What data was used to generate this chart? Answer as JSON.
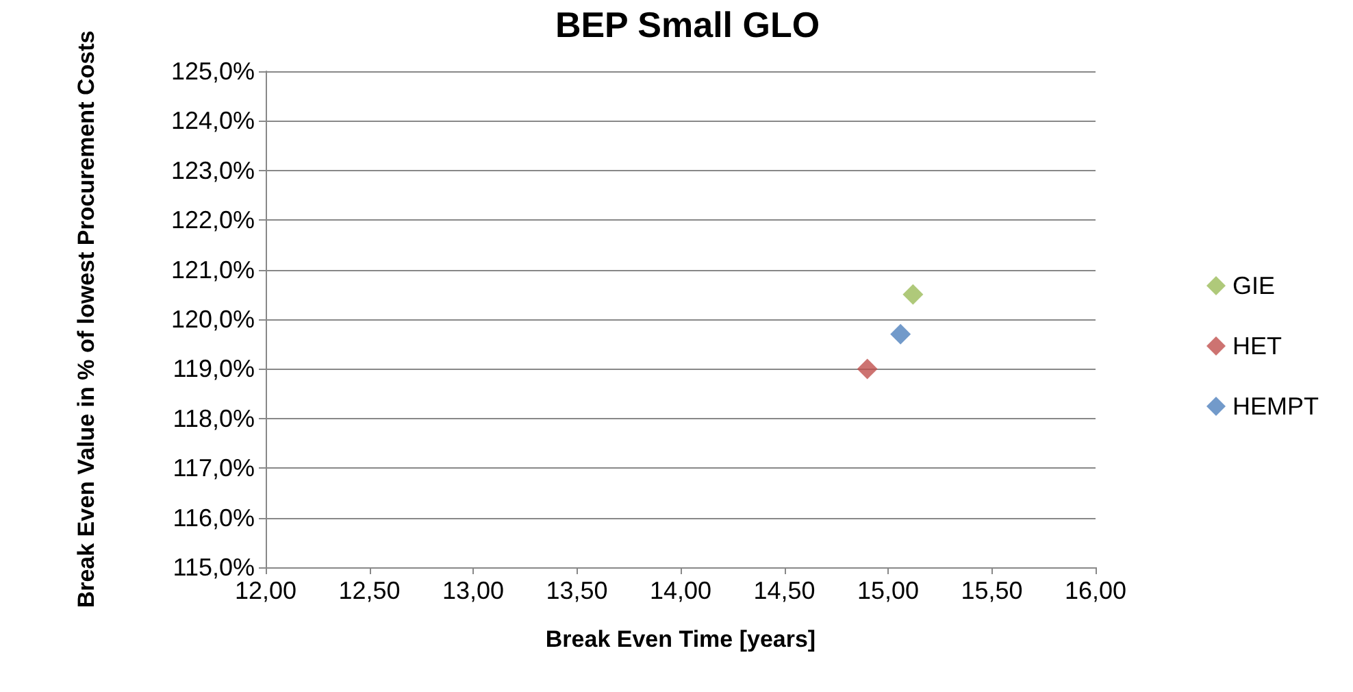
{
  "chart_data": {
    "type": "scatter",
    "title": "BEP Small GLO",
    "xlabel": "Break Even Time [years]",
    "ylabel": "Break Even Value in % of lowest Procurement Costs",
    "series": [
      {
        "name": "GIE",
        "color": "#9bbb59",
        "x": [
          15.12
        ],
        "values": [
          120.5
        ]
      },
      {
        "name": "HET",
        "color": "#c0504d",
        "x": [
          14.9
        ],
        "values": [
          119.0
        ]
      },
      {
        "name": "HEMPT",
        "color": "#4f81bd",
        "x": [
          15.06
        ],
        "values": [
          119.7
        ]
      }
    ],
    "xlim": [
      12,
      16
    ],
    "xticks": [
      {
        "value": 12,
        "label": "12,00"
      },
      {
        "value": 12.5,
        "label": "12,50"
      },
      {
        "value": 13,
        "label": "13,00"
      },
      {
        "value": 13.5,
        "label": "13,50"
      },
      {
        "value": 14,
        "label": "14,00"
      },
      {
        "value": 14.5,
        "label": "14,50"
      },
      {
        "value": 15,
        "label": "15,00"
      },
      {
        "value": 15.5,
        "label": "15,50"
      },
      {
        "value": 16,
        "label": "16,00"
      }
    ],
    "ylim": [
      115,
      125
    ],
    "yticks": [
      {
        "value": 115,
        "label": "115,0%"
      },
      {
        "value": 116,
        "label": "116,0%"
      },
      {
        "value": 117,
        "label": "117,0%"
      },
      {
        "value": 118,
        "label": "118,0%"
      },
      {
        "value": 119,
        "label": "119,0%"
      },
      {
        "value": 120,
        "label": "120,0%"
      },
      {
        "value": 121,
        "label": "121,0%"
      },
      {
        "value": 122,
        "label": "122,0%"
      },
      {
        "value": 123,
        "label": "123,0%"
      },
      {
        "value": 124,
        "label": "124,0%"
      },
      {
        "value": 125,
        "label": "125,0%"
      }
    ],
    "grid": "y",
    "legend": "right",
    "marker": "diamond"
  }
}
